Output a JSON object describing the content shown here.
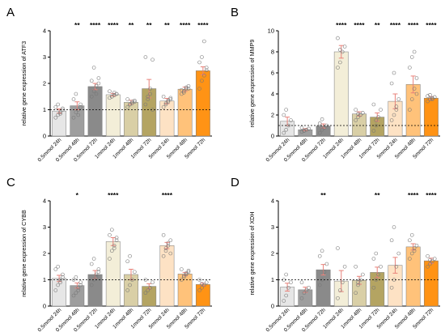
{
  "categories": [
    "0.5mmol 24h",
    "0.5mmol 48h",
    "0.5mmol 72h",
    "1mmol 24h",
    "1mmol 48h",
    "1mmol 72h",
    "5mmol 24h",
    "5mmol 48h",
    "5mmol 72h"
  ],
  "colors": [
    "#e6e6e6",
    "#9e9e9e",
    "#8a8a8a",
    "#f3eed8",
    "#d9cfa6",
    "#b4a462",
    "#fde2c4",
    "#ffc27a",
    "#ff9315"
  ],
  "panel_letters": [
    "A",
    "B",
    "C",
    "D"
  ],
  "chart_data": [
    {
      "type": "bar",
      "panel": "A",
      "ylabel": "relative gene expression of ATF3",
      "ylim": [
        0,
        4
      ],
      "yticks": [
        "0",
        "1",
        "2",
        "3",
        "4"
      ],
      "categories": [
        "0.5mmol 24h",
        "0.5mmol 48h",
        "0.5mmol 72h",
        "1mmol 24h",
        "1mmol 48h",
        "1mmol 72h",
        "5mmol 24h",
        "5mmol 48h",
        "5mmol 72h"
      ],
      "values": [
        0.95,
        1.15,
        1.88,
        1.57,
        1.28,
        1.8,
        1.33,
        1.78,
        2.48
      ],
      "errors": [
        0.08,
        0.15,
        0.12,
        0.05,
        0.08,
        0.35,
        0.1,
        0.08,
        0.15
      ],
      "significance": [
        "",
        "**",
        "****",
        "****",
        "**",
        "**",
        "**",
        "****",
        "****"
      ],
      "points": [
        [
          0.7,
          0.8,
          0.9,
          1.0,
          1.1,
          1.2,
          0.85,
          1.05
        ],
        [
          0.7,
          0.9,
          1.0,
          1.2,
          1.4,
          1.6,
          0.8,
          1.1
        ],
        [
          1.5,
          1.7,
          1.9,
          2.0,
          2.1,
          2.6,
          1.6,
          2.2
        ],
        [
          1.45,
          1.5,
          1.55,
          1.6,
          1.7,
          1.5,
          1.65,
          1.6
        ],
        [
          1.1,
          1.2,
          1.3,
          1.35,
          1.4,
          1.2,
          1.25,
          1.3
        ],
        [
          1.2,
          1.5,
          1.8,
          2.9,
          3.0,
          1.4,
          1.6,
          1.0
        ],
        [
          1.1,
          1.2,
          1.3,
          1.4,
          1.5,
          1.25,
          1.35,
          1.45
        ],
        [
          1.6,
          1.7,
          1.8,
          1.9,
          1.75,
          1.65,
          1.85,
          1.8
        ],
        [
          1.8,
          2.1,
          2.3,
          2.6,
          2.8,
          3.0,
          3.6,
          2.5
        ]
      ],
      "reference_line": 1
    },
    {
      "type": "bar",
      "panel": "B",
      "ylabel": "relative gene expression of MMP9",
      "ylim": [
        0,
        10
      ],
      "yticks": [
        "0",
        "2",
        "4",
        "6",
        "8",
        "10"
      ],
      "categories": [
        "0.5mmol 24h",
        "0.5mmol 48h",
        "0.5mmol 72h",
        "1mmol 24h",
        "1mmol 48h",
        "1mmol 72h",
        "5mmol 24h",
        "5mmol 48h",
        "5mmol 72h"
      ],
      "values": [
        1.4,
        0.6,
        0.95,
        8.0,
        2.1,
        1.8,
        3.3,
        4.9,
        3.6
      ],
      "errors": [
        0.4,
        0.1,
        0.2,
        0.6,
        0.2,
        0.4,
        0.7,
        0.8,
        0.15
      ],
      "significance": [
        "",
        "",
        "",
        "****",
        "****",
        "**",
        "****",
        "****",
        "****"
      ],
      "points": [
        [
          0.3,
          0.6,
          1.0,
          1.5,
          2.0,
          2.5
        ],
        [
          0.4,
          0.5,
          0.6,
          0.7,
          0.8,
          0.5
        ],
        [
          0.3,
          0.6,
          0.8,
          1.0,
          1.2,
          1.6
        ],
        [
          6.5,
          7.0,
          8.0,
          8.5,
          9.3,
          8.2
        ],
        [
          1.5,
          1.8,
          2.0,
          2.2,
          2.5,
          2.1
        ],
        [
          0.5,
          1.0,
          1.8,
          2.5,
          3.0,
          1.5
        ],
        [
          1.5,
          2.0,
          2.8,
          3.5,
          5.0,
          6.0,
          2.5
        ],
        [
          2.5,
          3.5,
          4.5,
          5.5,
          6.5,
          7.5,
          8.0,
          4.0
        ],
        [
          3.3,
          3.5,
          3.6,
          3.7,
          3.8,
          3.9,
          3.5
        ]
      ],
      "reference_line": 1
    },
    {
      "type": "bar",
      "panel": "C",
      "ylabel": "relative gene expression of CYBB",
      "ylim": [
        0,
        4
      ],
      "yticks": [
        "0",
        "1",
        "2",
        "3",
        "4"
      ],
      "categories": [
        "0.5mmol 24h",
        "0.5mmol 48h",
        "0.5mmol 72h",
        "1mmol 24h",
        "1mmol 48h",
        "1mmol 72h",
        "5mmol 24h",
        "5mmol 48h",
        "5mmol 72h"
      ],
      "values": [
        1.05,
        0.78,
        1.2,
        2.45,
        1.2,
        0.75,
        2.3,
        1.22,
        0.82
      ],
      "errors": [
        0.12,
        0.1,
        0.15,
        0.15,
        0.2,
        0.1,
        0.12,
        0.06,
        0.05
      ],
      "significance": [
        "",
        "*",
        "",
        "****",
        "",
        "",
        "****",
        "",
        ""
      ],
      "points": [
        [
          0.6,
          0.8,
          1.0,
          1.2,
          1.4,
          1.5,
          0.9,
          1.1
        ],
        [
          0.4,
          0.5,
          0.7,
          0.8,
          1.0,
          1.1,
          0.6,
          0.9
        ],
        [
          0.8,
          1.0,
          1.2,
          1.4,
          1.6,
          1.8,
          1.1,
          1.3
        ],
        [
          1.8,
          2.1,
          2.3,
          2.5,
          2.7,
          2.9,
          2.2,
          2.6
        ],
        [
          0.6,
          0.8,
          1.0,
          1.3,
          1.7,
          1.9
        ],
        [
          0.5,
          0.6,
          0.7,
          0.9,
          1.0
        ],
        [
          1.9,
          2.1,
          2.3,
          2.5,
          2.7,
          2.2,
          2.4,
          2.0
        ],
        [
          1.0,
          1.1,
          1.2,
          1.3,
          1.4,
          1.15,
          1.25,
          1.35
        ],
        [
          0.6,
          0.7,
          0.8,
          0.9,
          1.0,
          0.85
        ]
      ],
      "reference_line": 1
    },
    {
      "type": "bar",
      "panel": "D",
      "ylabel": "relative gene expression of XDH",
      "ylim": [
        0,
        4
      ],
      "yticks": [
        "0",
        "1",
        "2",
        "3",
        "4"
      ],
      "categories": [
        "0.5mmol 24h",
        "0.5mmol 48h",
        "0.5mmol 72h",
        "1mmol 24h",
        "1mmol 48h",
        "1mmol 72h",
        "5mmol 24h",
        "5mmol 48h",
        "5mmol 72h"
      ],
      "values": [
        0.72,
        0.62,
        1.38,
        0.95,
        0.98,
        1.28,
        1.55,
        2.25,
        1.72
      ],
      "errors": [
        0.15,
        0.1,
        0.2,
        0.4,
        0.15,
        0.2,
        0.3,
        0.12,
        0.1
      ],
      "significance": [
        "",
        "",
        "**",
        "",
        "",
        "**",
        "",
        "****",
        "****"
      ],
      "points": [
        [
          0.2,
          0.4,
          0.7,
          0.9,
          1.0,
          1.2
        ],
        [
          0.3,
          0.5,
          0.6,
          0.7,
          0.9
        ],
        [
          0.8,
          1.0,
          1.3,
          1.6,
          1.9,
          2.1
        ],
        [
          0.3,
          0.6,
          0.9,
          1.5,
          2.2
        ],
        [
          0.5,
          0.8,
          1.0,
          1.2,
          1.5,
          0.9
        ],
        [
          0.7,
          1.0,
          1.2,
          1.5,
          1.8,
          2.0
        ],
        [
          0.7,
          1.0,
          1.5,
          2.0,
          2.5,
          3.0
        ],
        [
          1.8,
          2.0,
          2.2,
          2.3,
          2.5,
          2.7,
          2.1
        ],
        [
          1.5,
          1.6,
          1.7,
          1.8,
          1.9,
          1.75
        ]
      ],
      "reference_line": 1
    }
  ]
}
